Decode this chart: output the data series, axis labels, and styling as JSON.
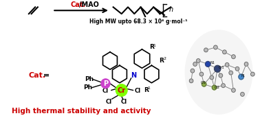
{
  "bg_color": "#ffffff",
  "cat_color": "#cc0000",
  "cr_color": "#7fff00",
  "p_color": "#cc44cc",
  "n_color": "#0000cc",
  "red_text": "#cc0000",
  "black": "#000000",
  "top_reaction_text": "Cat./MAO",
  "mw_text": "High MW upto 68.3 × 10⁴ g·mol⁻¹",
  "bottom_text": "High thermal stability and activity",
  "figsize": [
    3.78,
    1.72
  ],
  "dpi": 100
}
